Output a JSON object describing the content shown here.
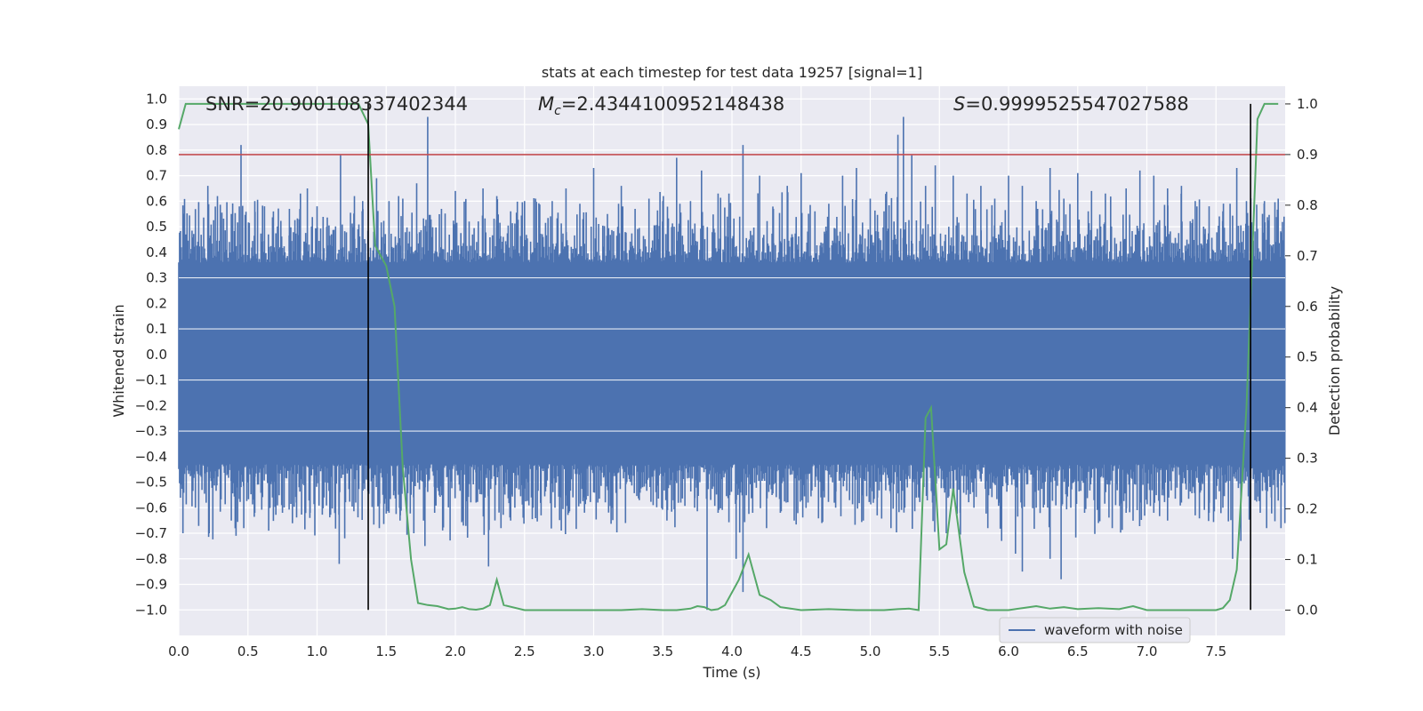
{
  "chart_data": {
    "type": "line",
    "title": "stats at each timestep for test data 19257 [signal=1]",
    "xlabel": "Time (s)",
    "ylabel": "Whitened strain",
    "y2label": "Detection probability",
    "xlim": [
      0.0,
      8.0
    ],
    "ylim": [
      -1.1,
      1.05
    ],
    "y2lim": [
      -0.05,
      1.035
    ],
    "x_ticks": [
      0.0,
      0.5,
      1.0,
      1.5,
      2.0,
      2.5,
      3.0,
      3.5,
      4.0,
      4.5,
      5.0,
      5.5,
      6.0,
      6.5,
      7.0,
      7.5
    ],
    "x_tick_labels": [
      "0.0",
      "0.5",
      "1.0",
      "1.5",
      "2.0",
      "2.5",
      "3.0",
      "3.5",
      "4.0",
      "4.5",
      "5.0",
      "5.5",
      "6.0",
      "6.5",
      "7.0",
      "7.5"
    ],
    "y_ticks": [
      1.0,
      0.9,
      0.8,
      0.7,
      0.6,
      0.5,
      0.4,
      0.3,
      0.2,
      0.1,
      0.0,
      -0.1,
      -0.2,
      -0.3,
      -0.4,
      -0.5,
      -0.6,
      -0.7,
      -0.8,
      -0.9,
      -1.0
    ],
    "y_tick_labels": [
      "1.0",
      "0.9",
      "0.8",
      "0.7",
      "0.6",
      "0.5",
      "0.4",
      "0.3",
      "0.2",
      "0.1",
      "0.0",
      "−0.1",
      "−0.2",
      "−0.3",
      "−0.4",
      "−0.5",
      "−0.6",
      "−0.7",
      "−0.8",
      "−0.9",
      "−1.0"
    ],
    "y2_ticks": [
      1.0,
      0.9,
      0.8,
      0.7,
      0.6,
      0.5,
      0.4,
      0.3,
      0.2,
      0.1,
      0.0
    ],
    "y2_tick_labels": [
      "1.0",
      "0.9",
      "0.8",
      "0.7",
      "0.6",
      "0.5",
      "0.4",
      "0.3",
      "0.2",
      "0.1",
      "0.0"
    ],
    "annotations": {
      "snr": "SNR=20.900108337402344",
      "mc_symbol": "M",
      "mc_subscript": "c",
      "mc_value": "=2.4344100952148438",
      "s_symbol": "S",
      "s_value": "=0.9999525547027588"
    },
    "threshold_probability": 0.9,
    "vertical_lines_x": [
      1.37,
      7.75
    ],
    "waveform": {
      "name": "waveform with noise",
      "color": "#4c72b0",
      "core_band": [
        -0.42,
        0.35
      ],
      "spikes_up": [
        [
          0.05,
          0.47
        ],
        [
          0.12,
          0.52
        ],
        [
          0.21,
          0.66
        ],
        [
          0.28,
          0.62
        ],
        [
          0.38,
          0.55
        ],
        [
          0.45,
          0.82
        ],
        [
          0.55,
          0.6
        ],
        [
          0.62,
          0.58
        ],
        [
          0.72,
          0.56
        ],
        [
          0.8,
          0.57
        ],
        [
          0.88,
          0.63
        ],
        [
          0.93,
          0.65
        ],
        [
          1.0,
          0.58
        ],
        [
          1.07,
          0.5
        ],
        [
          1.17,
          0.78
        ],
        [
          1.27,
          0.62
        ],
        [
          1.33,
          0.6
        ],
        [
          1.43,
          0.69
        ],
        [
          1.52,
          0.6
        ],
        [
          1.62,
          0.61
        ],
        [
          1.72,
          0.67
        ],
        [
          1.8,
          0.93
        ],
        [
          1.9,
          0.57
        ],
        [
          2.0,
          0.64
        ],
        [
          2.1,
          0.52
        ],
        [
          2.2,
          0.65
        ],
        [
          2.3,
          0.62
        ],
        [
          2.4,
          0.56
        ],
        [
          2.5,
          0.6
        ],
        [
          2.58,
          0.61
        ],
        [
          2.7,
          0.6
        ],
        [
          2.8,
          0.65
        ],
        [
          2.9,
          0.59
        ],
        [
          3.0,
          0.73
        ],
        [
          3.1,
          0.55
        ],
        [
          3.2,
          0.66
        ],
        [
          3.3,
          0.57
        ],
        [
          3.4,
          0.61
        ],
        [
          3.5,
          0.6
        ],
        [
          3.6,
          0.77
        ],
        [
          3.7,
          0.6
        ],
        [
          3.78,
          0.72
        ],
        [
          3.9,
          0.63
        ],
        [
          4.08,
          0.82
        ],
        [
          4.2,
          0.7
        ],
        [
          4.3,
          0.57
        ],
        [
          4.4,
          0.66
        ],
        [
          4.5,
          0.71
        ],
        [
          4.6,
          0.56
        ],
        [
          4.7,
          0.59
        ],
        [
          4.8,
          0.7
        ],
        [
          4.9,
          0.73
        ],
        [
          5.0,
          0.61
        ],
        [
          5.1,
          0.56
        ],
        [
          5.2,
          0.86
        ],
        [
          5.24,
          0.93
        ],
        [
          5.3,
          0.78
        ],
        [
          5.4,
          0.66
        ],
        [
          5.47,
          0.74
        ],
        [
          5.6,
          0.7
        ],
        [
          5.7,
          0.63
        ],
        [
          5.8,
          0.66
        ],
        [
          5.9,
          0.61
        ],
        [
          6.0,
          0.7
        ],
        [
          6.1,
          0.66
        ],
        [
          6.2,
          0.6
        ],
        [
          6.3,
          0.73
        ],
        [
          6.4,
          0.61
        ],
        [
          6.5,
          0.71
        ],
        [
          6.6,
          0.64
        ],
        [
          6.7,
          0.63
        ],
        [
          6.85,
          0.65
        ],
        [
          6.95,
          0.72
        ],
        [
          7.05,
          0.7
        ],
        [
          7.15,
          0.65
        ],
        [
          7.25,
          0.66
        ],
        [
          7.35,
          0.6
        ],
        [
          7.45,
          0.58
        ],
        [
          7.55,
          0.56
        ],
        [
          7.65,
          0.73
        ],
        [
          7.72,
          0.6
        ],
        [
          7.85,
          0.6
        ],
        [
          7.95,
          0.61
        ]
      ],
      "spikes_down": [
        [
          0.03,
          -0.7
        ],
        [
          0.12,
          -0.6
        ],
        [
          0.22,
          -0.7
        ],
        [
          0.3,
          -0.6
        ],
        [
          0.38,
          -0.65
        ],
        [
          0.47,
          -0.68
        ],
        [
          0.55,
          -0.62
        ],
        [
          0.65,
          -0.69
        ],
        [
          0.75,
          -0.62
        ],
        [
          0.85,
          -0.58
        ],
        [
          0.95,
          -0.62
        ],
        [
          1.05,
          -0.56
        ],
        [
          1.16,
          -0.82
        ],
        [
          1.2,
          -0.72
        ],
        [
          1.28,
          -0.58
        ],
        [
          1.45,
          -0.68
        ],
        [
          1.52,
          -0.62
        ],
        [
          1.6,
          -0.65
        ],
        [
          1.7,
          -0.7
        ],
        [
          1.78,
          -0.75
        ],
        [
          1.85,
          -0.62
        ],
        [
          1.95,
          -0.58
        ],
        [
          2.05,
          -0.65
        ],
        [
          2.15,
          -0.58
        ],
        [
          2.24,
          -0.83
        ],
        [
          2.33,
          -0.68
        ],
        [
          2.43,
          -0.6
        ],
        [
          2.52,
          -0.57
        ],
        [
          2.62,
          -0.63
        ],
        [
          2.72,
          -0.6
        ],
        [
          2.82,
          -0.62
        ],
        [
          2.93,
          -0.56
        ],
        [
          3.03,
          -0.58
        ],
        [
          3.13,
          -0.6
        ],
        [
          3.23,
          -0.66
        ],
        [
          3.33,
          -0.57
        ],
        [
          3.43,
          -0.59
        ],
        [
          3.53,
          -0.65
        ],
        [
          3.63,
          -0.58
        ],
        [
          3.73,
          -0.6
        ],
        [
          3.82,
          -1.0
        ],
        [
          3.9,
          -0.62
        ],
        [
          4.03,
          -0.8
        ],
        [
          4.08,
          -0.93
        ],
        [
          4.15,
          -0.62
        ],
        [
          4.25,
          -0.68
        ],
        [
          4.35,
          -0.62
        ],
        [
          4.45,
          -0.65
        ],
        [
          4.55,
          -0.58
        ],
        [
          4.65,
          -0.66
        ],
        [
          4.75,
          -0.6
        ],
        [
          4.85,
          -0.57
        ],
        [
          4.95,
          -0.65
        ],
        [
          5.05,
          -0.63
        ],
        [
          5.15,
          -0.68
        ],
        [
          5.25,
          -0.6
        ],
        [
          5.35,
          -0.56
        ],
        [
          5.45,
          -0.58
        ],
        [
          5.55,
          -0.7
        ],
        [
          5.65,
          -0.62
        ],
        [
          5.75,
          -0.6
        ],
        [
          5.85,
          -0.68
        ],
        [
          5.95,
          -0.73
        ],
        [
          6.05,
          -0.78
        ],
        [
          6.1,
          -0.85
        ],
        [
          6.2,
          -0.6
        ],
        [
          6.3,
          -0.8
        ],
        [
          6.38,
          -0.88
        ],
        [
          6.45,
          -0.6
        ],
        [
          6.55,
          -0.62
        ],
        [
          6.65,
          -0.66
        ],
        [
          6.75,
          -0.68
        ],
        [
          6.85,
          -0.62
        ],
        [
          6.95,
          -0.58
        ],
        [
          7.05,
          -0.62
        ],
        [
          7.15,
          -0.65
        ],
        [
          7.25,
          -0.58
        ],
        [
          7.35,
          -0.63
        ],
        [
          7.45,
          -0.62
        ],
        [
          7.55,
          -0.6
        ],
        [
          7.62,
          -0.8
        ],
        [
          7.68,
          -0.73
        ],
        [
          7.82,
          -0.62
        ],
        [
          7.9,
          -0.56
        ],
        [
          7.97,
          -0.68
        ]
      ]
    },
    "probability": {
      "color": "#55a868",
      "x": [
        0.0,
        0.05,
        0.1,
        0.2,
        0.3,
        0.4,
        0.5,
        0.6,
        0.7,
        0.8,
        0.9,
        1.0,
        1.1,
        1.2,
        1.3,
        1.37,
        1.42,
        1.5,
        1.56,
        1.62,
        1.68,
        1.73,
        1.8,
        1.87,
        1.95,
        2.0,
        2.05,
        2.1,
        2.15,
        2.2,
        2.25,
        2.3,
        2.35,
        2.5,
        2.7,
        3.0,
        3.2,
        3.35,
        3.5,
        3.6,
        3.7,
        3.75,
        3.8,
        3.85,
        3.9,
        3.95,
        4.05,
        4.12,
        4.2,
        4.28,
        4.35,
        4.5,
        4.7,
        4.9,
        5.0,
        5.1,
        5.2,
        5.28,
        5.35,
        5.4,
        5.44,
        5.5,
        5.55,
        5.6,
        5.68,
        5.75,
        5.85,
        6.0,
        6.1,
        6.2,
        6.3,
        6.4,
        6.5,
        6.65,
        6.8,
        6.9,
        7.0,
        7.2,
        7.4,
        7.5,
        7.55,
        7.6,
        7.65,
        7.72,
        7.8,
        7.85,
        7.9,
        7.95
      ],
      "y": [
        0.95,
        1.0,
        1.0,
        1.0,
        1.0,
        1.0,
        1.0,
        1.0,
        1.0,
        1.0,
        1.0,
        1.0,
        1.0,
        1.0,
        1.0,
        0.96,
        0.72,
        0.68,
        0.6,
        0.28,
        0.1,
        0.014,
        0.01,
        0.008,
        0.002,
        0.003,
        0.006,
        0.002,
        0.001,
        0.003,
        0.01,
        0.06,
        0.01,
        0.0,
        0.0,
        0.0,
        0.0,
        0.002,
        0.0,
        0.0,
        0.003,
        0.008,
        0.006,
        0.0,
        0.002,
        0.01,
        0.06,
        0.11,
        0.03,
        0.02,
        0.006,
        0.0,
        0.002,
        0.0,
        0.0,
        0.0,
        0.002,
        0.003,
        0.0,
        0.38,
        0.4,
        0.12,
        0.13,
        0.24,
        0.075,
        0.007,
        0.0,
        0.0,
        0.004,
        0.008,
        0.003,
        0.006,
        0.002,
        0.004,
        0.002,
        0.008,
        0.0,
        0.0,
        0.0,
        0.0,
        0.004,
        0.02,
        0.08,
        0.4,
        0.97,
        1.0,
        1.0,
        1.0
      ]
    }
  }
}
